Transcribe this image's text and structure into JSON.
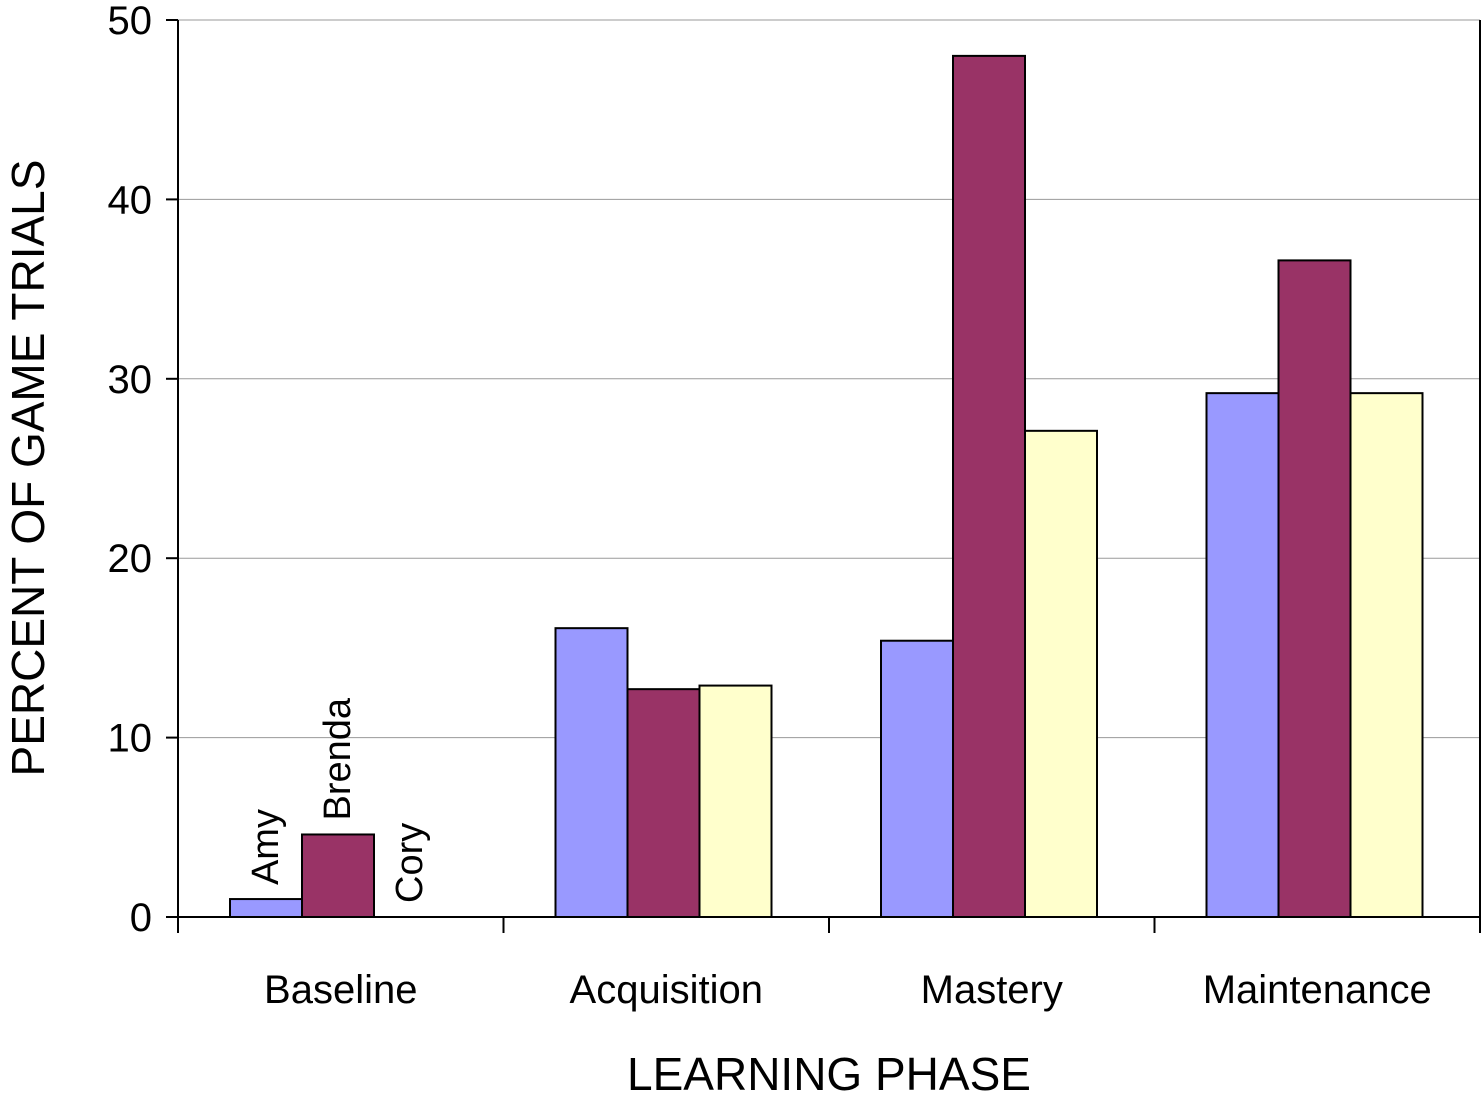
{
  "chart_data": {
    "type": "bar",
    "title": "",
    "xlabel": "LEARNING PHASE",
    "ylabel": "PERCENT OF GAME TRIALS",
    "categories": [
      "Baseline",
      "Acquisition",
      "Mastery",
      "Maintenance"
    ],
    "series": [
      {
        "name": "Amy",
        "color": "#9999ff",
        "values": [
          1,
          16.1,
          15.4,
          29.2
        ]
      },
      {
        "name": "Brenda",
        "color": "#993366",
        "values": [
          4.6,
          12.7,
          48.0,
          36.6
        ]
      },
      {
        "name": "Cory",
        "color": "#ffffcc",
        "values": [
          0,
          12.9,
          27.1,
          29.2
        ]
      }
    ],
    "ylim": [
      0,
      50
    ],
    "yticks": [
      0,
      10,
      20,
      30,
      40,
      50
    ],
    "grid": true,
    "legend": "inline labels above Baseline bars"
  }
}
